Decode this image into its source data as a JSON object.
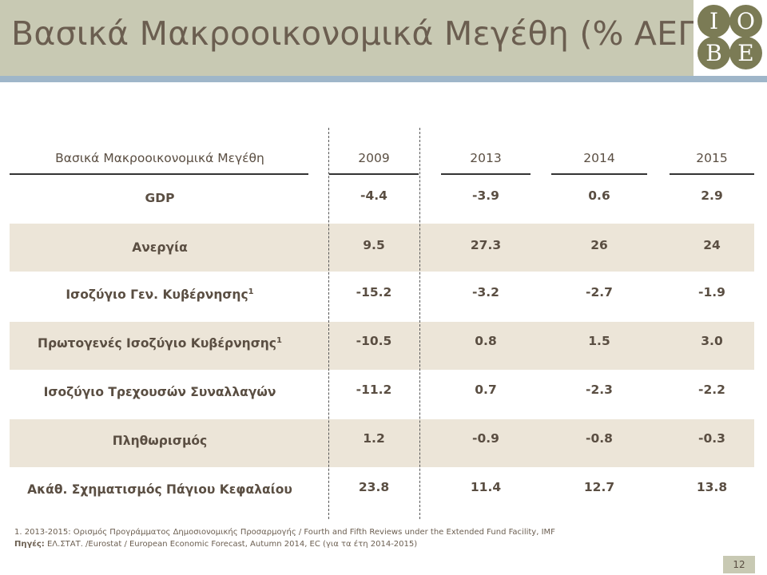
{
  "header": {
    "title": "Βασικά Μακροοικονομικά Μεγέθη (% ΑΕΠ)",
    "logo_letters": [
      "I",
      "O",
      "B",
      "E"
    ]
  },
  "table": {
    "header_label": "Βασικά Μακροοικονομικά Μεγέθη",
    "years": [
      "2009",
      "2013",
      "2014",
      "2015"
    ],
    "rows": [
      {
        "label": "GDP",
        "sup": "",
        "values": [
          "-4.4",
          "-3.9",
          "0.6",
          "2.9"
        ]
      },
      {
        "label": "Ανεργία",
        "sup": "",
        "values": [
          "9.5",
          "27.3",
          "26",
          "24"
        ]
      },
      {
        "label": "Ισοζύγιο Γεν. Κυβέρνησης",
        "sup": "1",
        "values": [
          "-15.2",
          "-3.2",
          "-2.7",
          "-1.9"
        ]
      },
      {
        "label": "Πρωτογενές Ισοζύγιο Κυβέρνησης",
        "sup": "1",
        "values": [
          "-10.5",
          "0.8",
          "1.5",
          "3.0"
        ]
      },
      {
        "label": "Ισοζύγιο Τρεχουσών Συναλλαγών",
        "sup": "",
        "values": [
          "-11.2",
          "0.7",
          "-2.3",
          "-2.2"
        ]
      },
      {
        "label": "Πληθωρισμός",
        "sup": "",
        "values": [
          "1.2",
          "-0.9",
          "-0.8",
          "-0.3"
        ]
      },
      {
        "label": "Ακάθ. Σχηματισμός Πάγιου Κεφαλαίου",
        "sup": "",
        "values": [
          "23.8",
          "11.4",
          "12.7",
          "13.8"
        ]
      }
    ]
  },
  "footer": {
    "footnote": "1.    2013-2015: Ορισμός Προγράμματος Δημοσιονομικής Προσαρμογής / Fourth and Fifth Reviews under the Extended Fund Facility, IMF",
    "sources_label": "Πηγές:",
    "sources_text": " ΕΛ.ΣΤΑΤ.  /Eurostat / European Economic Forecast, Autumn 2014, EC (για τα έτη 2014-2015)",
    "page_number": "12"
  },
  "colors": {
    "header_bg": "#c8c9b3",
    "accent_bar": "#9fb6c9",
    "row_band": "#ece5d8",
    "text": "#5a4e42",
    "logo": "#7b7b55"
  }
}
